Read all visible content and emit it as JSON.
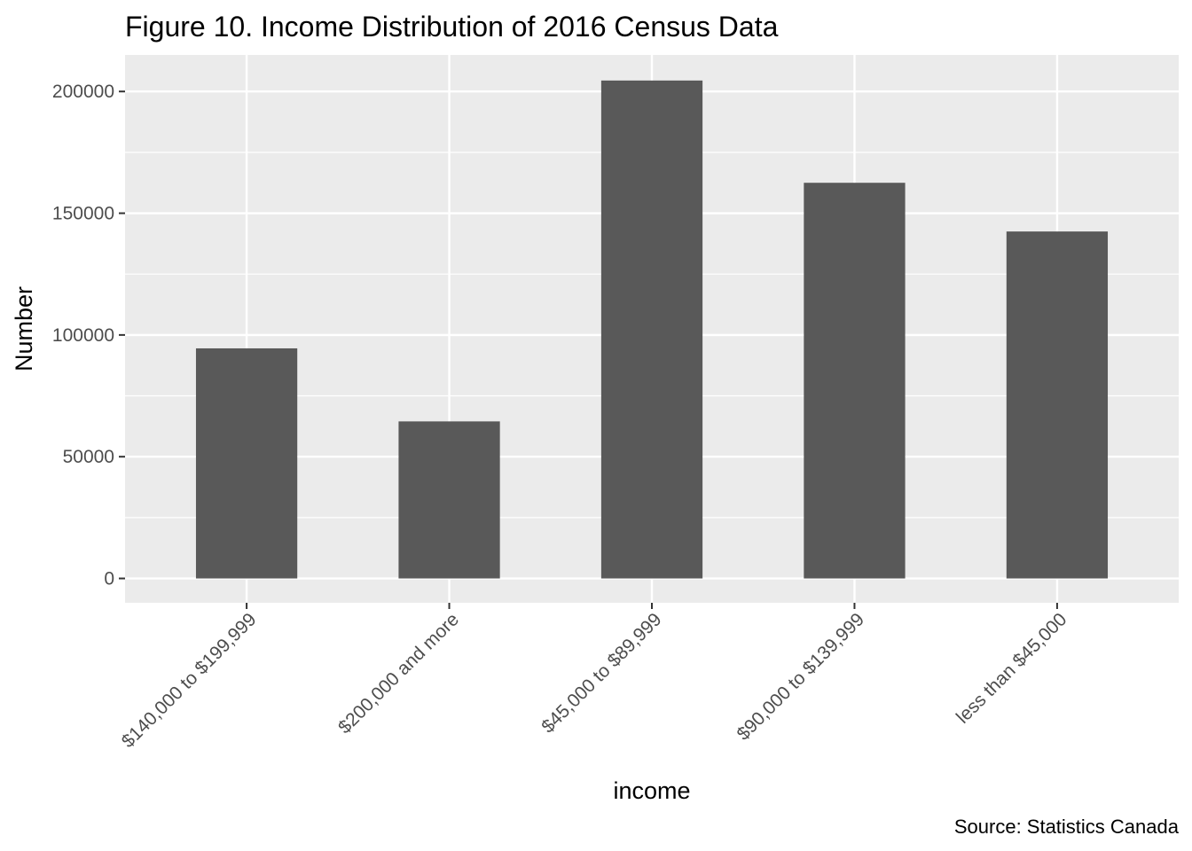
{
  "chart_data": {
    "type": "bar",
    "title": "Figure 10. Income Distribution of 2016 Census Data",
    "xlabel": "income",
    "ylabel": "Number",
    "caption": "Source: Statistics Canada",
    "categories": [
      "$140,000 to $199,999",
      "$200,000 and more",
      "$45,000 to $89,999",
      "$90,000 to $139,999",
      "less than $45,000"
    ],
    "values": [
      94500,
      64500,
      204500,
      162500,
      142500
    ],
    "ylim": [
      -10000,
      215000
    ],
    "yticks": [
      0,
      50000,
      100000,
      150000,
      200000
    ],
    "ytick_labels": [
      "0",
      "50000",
      "100000",
      "150000",
      "200000"
    ],
    "grid": true,
    "colors": {
      "panel_background": "#EBEBEB",
      "bar_fill": "#595959",
      "grid_major": "#FFFFFF",
      "grid_minor": "#F5F5F5",
      "tick_color": "#333333"
    }
  }
}
